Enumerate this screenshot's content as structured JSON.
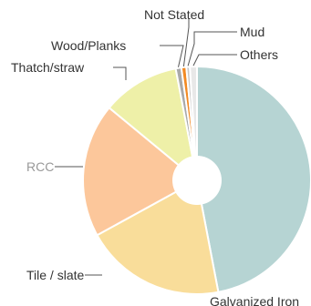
{
  "chart_data": {
    "type": "pie",
    "donut": true,
    "title": "",
    "slices": [
      {
        "label": "Galvanized Iron",
        "value": 47.0,
        "color": "#b6d4d3"
      },
      {
        "label": "Tile / slate",
        "value": 20.0,
        "color": "#f9dd9a"
      },
      {
        "label": "RCC",
        "value": 19.0,
        "color": "#fcc79b"
      },
      {
        "label": "Thatch/straw",
        "value": 11.0,
        "color": "#eef0a8"
      },
      {
        "label": "Wood/Planks",
        "value": 0.8,
        "color": "#a9a9a9"
      },
      {
        "label": "Not Stated",
        "value": 0.7,
        "color": "#f28a24"
      },
      {
        "label": "Mud",
        "value": 0.5,
        "color": "#c8c8c8"
      },
      {
        "label": "Others",
        "value": 1.0,
        "color": "#e8e8e8"
      }
    ]
  }
}
